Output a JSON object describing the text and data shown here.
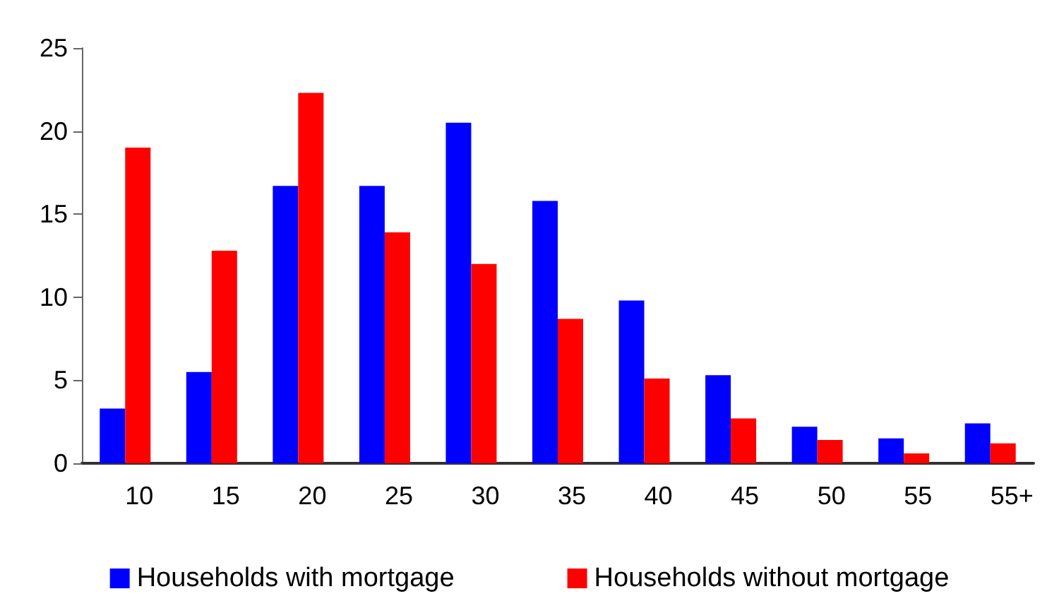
{
  "chart_data": {
    "type": "bar",
    "categories": [
      "10",
      "15",
      "20",
      "25",
      "30",
      "35",
      "40",
      "45",
      "50",
      "55",
      "55+"
    ],
    "series": [
      {
        "name": "Households with mortgage",
        "color": "#0000ff",
        "values": [
          3.3,
          5.5,
          16.7,
          16.7,
          20.5,
          15.8,
          9.8,
          5.3,
          2.2,
          1.5,
          2.4
        ]
      },
      {
        "name": "Households without mortgage",
        "color": "#ff0000",
        "values": [
          19.0,
          12.8,
          22.3,
          13.9,
          12.0,
          8.7,
          5.1,
          2.7,
          1.4,
          0.6,
          1.2
        ]
      }
    ],
    "ylim": [
      0,
      25
    ],
    "yticks": [
      0,
      5,
      10,
      15,
      20,
      25
    ],
    "grid": false,
    "legend": "bottom"
  }
}
